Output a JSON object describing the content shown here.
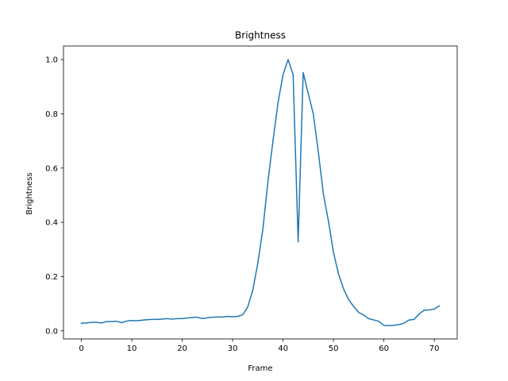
{
  "chart_data": {
    "type": "line",
    "title": "Brightness",
    "xlabel": "Frame",
    "ylabel": "Brightness",
    "xlim": [
      -3.55,
      74.55
    ],
    "ylim": [
      -0.03,
      1.05
    ],
    "xticks": [
      0,
      10,
      20,
      30,
      40,
      50,
      60,
      70
    ],
    "yticks": [
      0.0,
      0.2,
      0.4,
      0.6,
      0.8,
      1.0
    ],
    "xtick_labels": [
      "0",
      "10",
      "20",
      "30",
      "40",
      "50",
      "60",
      "70"
    ],
    "ytick_labels": [
      "0.0",
      "0.2",
      "0.4",
      "0.6",
      "0.8",
      "1.0"
    ],
    "grid": false,
    "series": [
      {
        "color": "#1f77b4",
        "x": [
          0,
          1,
          2,
          3,
          4,
          5,
          6,
          7,
          8,
          9,
          10,
          11,
          12,
          13,
          14,
          15,
          16,
          17,
          18,
          19,
          20,
          21,
          22,
          23,
          24,
          25,
          26,
          27,
          28,
          29,
          30,
          31,
          32,
          33,
          34,
          35,
          36,
          37,
          38,
          39,
          40,
          41,
          42,
          43,
          44,
          45,
          46,
          47,
          48,
          49,
          50,
          51,
          52,
          53,
          54,
          55,
          56,
          57,
          58,
          59,
          60,
          61,
          62,
          63,
          64,
          65,
          66,
          67,
          68,
          69,
          70,
          71
        ],
        "y": [
          0.028,
          0.029,
          0.031,
          0.031,
          0.029,
          0.034,
          0.034,
          0.035,
          0.03,
          0.036,
          0.038,
          0.037,
          0.039,
          0.041,
          0.042,
          0.042,
          0.043,
          0.045,
          0.043,
          0.045,
          0.045,
          0.047,
          0.049,
          0.05,
          0.045,
          0.048,
          0.05,
          0.051,
          0.051,
          0.053,
          0.052,
          0.053,
          0.059,
          0.088,
          0.15,
          0.25,
          0.375,
          0.55,
          0.7,
          0.84,
          0.945,
          1.0,
          0.945,
          0.328,
          0.952,
          0.875,
          0.8,
          0.66,
          0.505,
          0.405,
          0.29,
          0.21,
          0.155,
          0.115,
          0.09,
          0.068,
          0.058,
          0.045,
          0.04,
          0.035,
          0.02,
          0.019,
          0.02,
          0.023,
          0.028,
          0.04,
          0.042,
          0.062,
          0.076,
          0.077,
          0.08,
          0.092
        ]
      }
    ]
  }
}
